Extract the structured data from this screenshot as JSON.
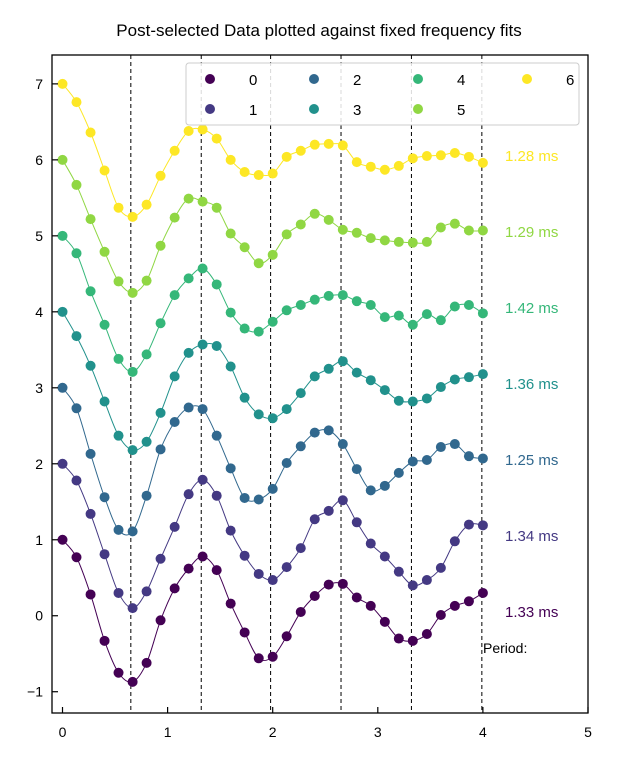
{
  "chart_data": {
    "type": "scatter",
    "title": "Post-selected Data plotted against fixed frequency fits",
    "xlabel": "",
    "ylabel": "",
    "xlim": [
      -0.1,
      5.0
    ],
    "ylim": [
      -1.28,
      7.38
    ],
    "xticks": [
      "0",
      "1",
      "2",
      "3",
      "4",
      "5"
    ],
    "yticks": [
      "−1",
      "0",
      "1",
      "2",
      "3",
      "4",
      "5",
      "6",
      "7"
    ],
    "vlines": [
      0.65,
      1.32,
      1.98,
      2.65,
      3.32,
      3.99
    ],
    "x": [
      0.0,
      0.133,
      0.267,
      0.4,
      0.533,
      0.667,
      0.8,
      0.933,
      1.067,
      1.2,
      1.333,
      1.467,
      1.6,
      1.733,
      1.867,
      2.0,
      2.133,
      2.267,
      2.4,
      2.533,
      2.667,
      2.8,
      2.933,
      3.067,
      3.2,
      3.333,
      3.467,
      3.6,
      3.733,
      3.867,
      4.0
    ],
    "period_label": "Period:",
    "legend": {
      "placement": "top-right",
      "columns": 4
    },
    "series": [
      {
        "name": "0",
        "color": "#440154",
        "offset": 0,
        "period_text": "1.33 ms",
        "values": [
          1.0,
          0.77,
          0.28,
          -0.33,
          -0.75,
          -0.87,
          -0.62,
          -0.06,
          0.36,
          0.62,
          0.78,
          0.6,
          0.16,
          -0.22,
          -0.56,
          -0.54,
          -0.27,
          0.05,
          0.26,
          0.41,
          0.42,
          0.24,
          0.13,
          -0.08,
          -0.3,
          -0.33,
          -0.24,
          0.01,
          0.13,
          0.19,
          0.3
        ]
      },
      {
        "name": "1",
        "color": "#443983",
        "offset": 1,
        "period_text": "1.34 ms",
        "values": [
          2.0,
          1.78,
          1.34,
          0.81,
          0.3,
          0.1,
          0.32,
          0.75,
          1.17,
          1.6,
          1.79,
          1.58,
          1.12,
          0.79,
          0.55,
          0.47,
          0.64,
          0.89,
          1.27,
          1.38,
          1.52,
          1.23,
          0.95,
          0.78,
          0.58,
          0.4,
          0.47,
          0.63,
          0.98,
          1.2,
          1.19
        ]
      },
      {
        "name": "2",
        "color": "#31688e",
        "offset": 2,
        "period_text": "1.25 ms",
        "values": [
          3.0,
          2.73,
          2.13,
          1.56,
          1.13,
          1.11,
          1.58,
          2.19,
          2.55,
          2.74,
          2.72,
          2.37,
          1.94,
          1.55,
          1.53,
          1.67,
          2.01,
          2.23,
          2.41,
          2.44,
          2.26,
          1.93,
          1.65,
          1.71,
          1.88,
          2.03,
          2.05,
          2.22,
          2.26,
          2.1,
          2.07
        ]
      },
      {
        "name": "3",
        "color": "#21918c",
        "offset": 3,
        "period_text": "1.36 ms",
        "values": [
          4.0,
          3.68,
          3.29,
          2.82,
          2.37,
          2.18,
          2.29,
          2.67,
          3.15,
          3.46,
          3.57,
          3.55,
          3.28,
          2.87,
          2.65,
          2.6,
          2.72,
          2.93,
          3.15,
          3.25,
          3.35,
          3.2,
          3.1,
          2.97,
          2.83,
          2.82,
          2.86,
          3.01,
          3.11,
          3.14,
          3.18
        ]
      },
      {
        "name": "4",
        "color": "#35b779",
        "offset": 4,
        "period_text": "1.42 ms",
        "values": [
          5.0,
          4.77,
          4.27,
          3.83,
          3.38,
          3.21,
          3.44,
          3.85,
          4.22,
          4.44,
          4.57,
          4.36,
          3.99,
          3.78,
          3.74,
          3.87,
          4.02,
          4.09,
          4.16,
          4.21,
          4.22,
          4.14,
          4.09,
          3.93,
          3.95,
          3.83,
          3.97,
          3.89,
          4.07,
          4.09,
          3.98
        ]
      },
      {
        "name": "5",
        "color": "#90d743",
        "offset": 5,
        "period_text": "1.29 ms",
        "values": [
          6.0,
          5.67,
          5.22,
          4.79,
          4.4,
          4.25,
          4.41,
          4.87,
          5.24,
          5.49,
          5.45,
          5.37,
          5.03,
          4.85,
          4.64,
          4.75,
          5.02,
          5.15,
          5.29,
          5.21,
          5.08,
          5.04,
          4.97,
          4.94,
          4.92,
          4.91,
          4.92,
          5.11,
          5.16,
          5.07,
          5.07
        ]
      },
      {
        "name": "6",
        "color": "#fde725",
        "offset": 6,
        "period_text": "1.28 ms",
        "values": [
          7.0,
          6.76,
          6.36,
          5.86,
          5.37,
          5.25,
          5.41,
          5.79,
          6.12,
          6.38,
          6.4,
          6.28,
          6.0,
          5.84,
          5.8,
          5.82,
          6.04,
          6.12,
          6.2,
          6.21,
          6.19,
          5.97,
          5.91,
          5.87,
          5.92,
          6.02,
          6.05,
          6.06,
          6.09,
          6.04,
          5.96
        ]
      }
    ]
  }
}
